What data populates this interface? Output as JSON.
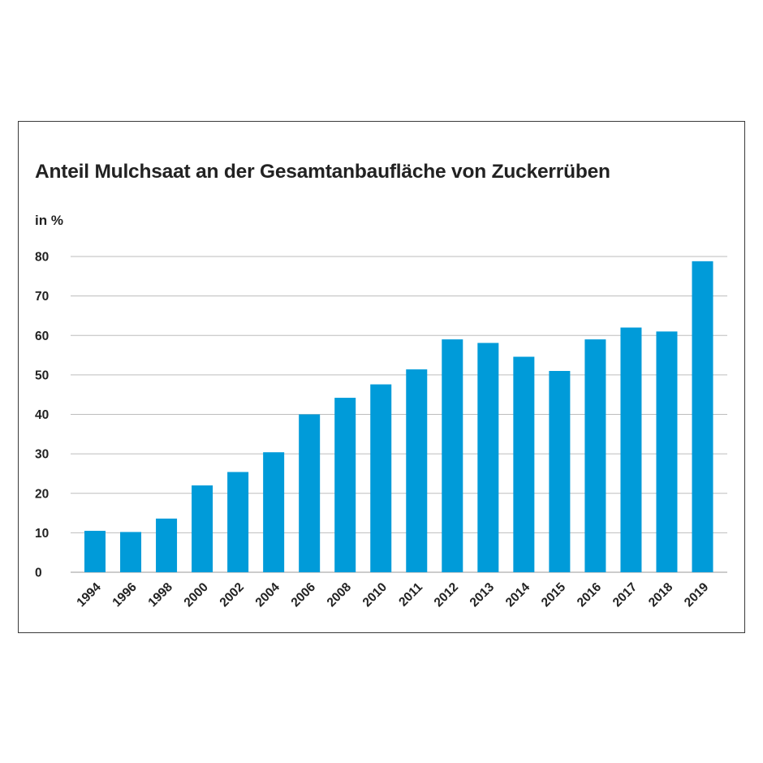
{
  "chart_data": {
    "type": "bar",
    "title": "Anteil Mulchsaat an der Gesamtanbaufläche von Zuckerrüben",
    "ylabel": "in %",
    "xlabel": "",
    "categories": [
      "1994",
      "1996",
      "1998",
      "2000",
      "2002",
      "2004",
      "2006",
      "2008",
      "2010",
      "2011",
      "2012",
      "2013",
      "2014",
      "2015",
      "2016",
      "2017",
      "2018",
      "2019"
    ],
    "series": [
      {
        "values": [
          10.5,
          10.2,
          13.6,
          22.0,
          25.4,
          30.4,
          40.0,
          44.2,
          47.6,
          51.4,
          59.0,
          58.1,
          54.6,
          51.0,
          59.0,
          62.0,
          61.0,
          78.8
        ]
      }
    ],
    "ylim": [
      0,
      80
    ],
    "yticks": [
      0,
      10,
      20,
      30,
      40,
      50,
      60,
      70,
      80
    ],
    "grid": true,
    "legend": "none",
    "bar_color": "#009bd9",
    "grid_color": "#bdbdbd",
    "text_color": "#222222"
  }
}
